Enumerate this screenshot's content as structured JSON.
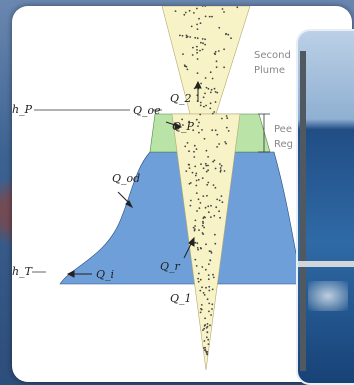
{
  "diagram": {
    "labels": {
      "h_p": "h_P",
      "h_T": "h_T",
      "Q_2": "Q_2",
      "Q_oe": "Q_oe",
      "Q_p": "Q_P",
      "Q_od": "Q_od",
      "Q_i": "Q_i",
      "Q_r": "Q_r",
      "Q_1": "Q_1"
    },
    "side_text": {
      "secondary_line1": "Second",
      "secondary_line2": "Plume",
      "peel_line1": "Pee",
      "peel_line2": "Reg"
    },
    "colors": {
      "plume": "#f7f3c6",
      "peel_region": "#b9e3a7",
      "blue_region": "#6f9fd8"
    }
  }
}
